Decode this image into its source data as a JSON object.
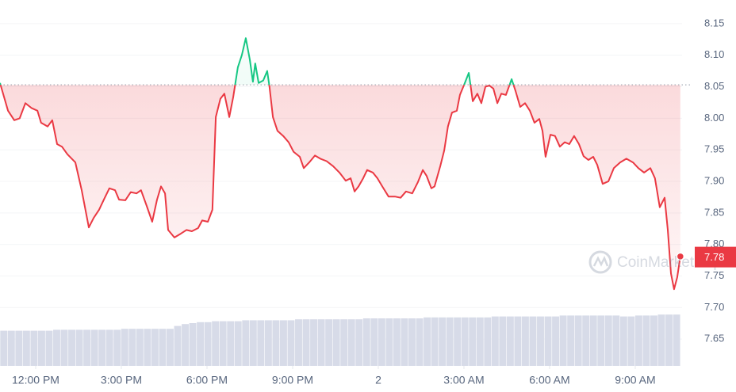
{
  "chart_data": {
    "type": "line",
    "watermark": "CoinMarketCap",
    "x": [
      -1.25,
      -0.97,
      -0.75,
      -0.56,
      -0.36,
      -0.14,
      0.06,
      0.19,
      0.42,
      0.58,
      0.75,
      0.92,
      1.11,
      1.39,
      1.61,
      1.86,
      2.03,
      2.22,
      2.42,
      2.58,
      2.78,
      2.92,
      3.14,
      3.33,
      3.53,
      3.69,
      3.89,
      4.08,
      4.25,
      4.39,
      4.53,
      4.64,
      4.86,
      5.08,
      5.28,
      5.47,
      5.69,
      5.83,
      6.03,
      6.19,
      6.31,
      6.47,
      6.61,
      6.78,
      6.92,
      7.08,
      7.22,
      7.36,
      7.5,
      7.61,
      7.69,
      7.81,
      7.97,
      8.11,
      8.19,
      8.31,
      8.47,
      8.67,
      8.86,
      9.03,
      9.25,
      9.39,
      9.58,
      9.78,
      9.97,
      10.19,
      10.42,
      10.64,
      10.86,
      11.03,
      11.17,
      11.31,
      11.47,
      11.61,
      11.81,
      11.97,
      12.14,
      12.36,
      12.58,
      12.78,
      12.97,
      13.19,
      13.39,
      13.56,
      13.69,
      13.86,
      13.97,
      14.17,
      14.31,
      14.44,
      14.58,
      14.75,
      14.86,
      15.03,
      15.17,
      15.31,
      15.47,
      15.61,
      15.75,
      15.89,
      16.03,
      16.17,
      16.31,
      16.47,
      16.67,
      16.81,
      16.97,
      17.14,
      17.31,
      17.47,
      17.64,
      17.75,
      17.86,
      18.03,
      18.19,
      18.36,
      18.53,
      18.69,
      18.86,
      19.03,
      19.19,
      19.36,
      19.53,
      19.67,
      19.86,
      20.06,
      20.25,
      20.47,
      20.69,
      20.92,
      21.11,
      21.31,
      21.53,
      21.69,
      21.86,
      22.03,
      22.14,
      22.25,
      22.36,
      22.47,
      22.58
    ],
    "series": [
      {
        "color": "#ea3943",
        "up_color": "#16c784",
        "values": [
          8.056,
          8.012,
          7.997,
          8.0,
          8.024,
          8.016,
          8.012,
          7.993,
          7.987,
          7.997,
          7.959,
          7.955,
          7.943,
          7.93,
          7.886,
          7.827,
          7.842,
          7.855,
          7.874,
          7.889,
          7.886,
          7.871,
          7.87,
          7.883,
          7.881,
          7.886,
          7.861,
          7.836,
          7.871,
          7.892,
          7.881,
          7.823,
          7.811,
          7.817,
          7.823,
          7.821,
          7.826,
          7.838,
          7.836,
          7.855,
          8.002,
          8.031,
          8.039,
          8.002,
          8.034,
          8.081,
          8.1,
          8.127,
          8.093,
          8.058,
          8.087,
          8.056,
          8.06,
          8.075,
          8.05,
          8.002,
          7.98,
          7.972,
          7.962,
          7.947,
          7.939,
          7.921,
          7.93,
          7.941,
          7.936,
          7.932,
          7.924,
          7.914,
          7.901,
          7.905,
          7.884,
          7.892,
          7.905,
          7.918,
          7.914,
          7.905,
          7.892,
          7.876,
          7.876,
          7.874,
          7.884,
          7.881,
          7.899,
          7.918,
          7.909,
          7.889,
          7.892,
          7.924,
          7.949,
          7.987,
          8.009,
          8.012,
          8.037,
          8.056,
          8.072,
          8.027,
          8.039,
          8.024,
          8.05,
          8.052,
          8.047,
          8.024,
          8.039,
          8.037,
          8.062,
          8.043,
          8.018,
          8.024,
          8.012,
          7.993,
          7.999,
          7.98,
          7.939,
          7.974,
          7.972,
          7.955,
          7.962,
          7.959,
          7.972,
          7.959,
          7.94,
          7.934,
          7.939,
          7.926,
          7.896,
          7.9,
          7.921,
          7.93,
          7.936,
          7.93,
          7.921,
          7.914,
          7.921,
          7.905,
          7.859,
          7.874,
          7.823,
          7.754,
          7.729,
          7.748,
          7.781
        ]
      }
    ],
    "reference": 8.053,
    "price_label": 7.78,
    "volume": {
      "color": "#d7dbe8",
      "ylim": [
        0,
        100
      ],
      "values": [
        37,
        37,
        37,
        37,
        37,
        37,
        37,
        38,
        38,
        38,
        38,
        38,
        38,
        38,
        38,
        38,
        39,
        39,
        39,
        39,
        39,
        39,
        39,
        42,
        44,
        45,
        46,
        46,
        47,
        47,
        47,
        47,
        48,
        48,
        48,
        48,
        48,
        48,
        48,
        49,
        49,
        49,
        49,
        49,
        49,
        49,
        49,
        49,
        50,
        50,
        50,
        50,
        50,
        50,
        50,
        50,
        51,
        51,
        51,
        51,
        51,
        51,
        51,
        51,
        51,
        52,
        52,
        52,
        52,
        52,
        52,
        52,
        52,
        52,
        53,
        53,
        53,
        53,
        53,
        53,
        53,
        53,
        52,
        52,
        53,
        53,
        53,
        54,
        54,
        54
      ]
    },
    "xlim": [
      -1.25,
      22.64
    ],
    "ylim": [
      7.6,
      8.18
    ],
    "xticks": [
      {
        "value": 0,
        "label": "12:00 PM"
      },
      {
        "value": 3,
        "label": "3:00 PM"
      },
      {
        "value": 6,
        "label": "6:00 PM"
      },
      {
        "value": 9,
        "label": "9:00 PM"
      },
      {
        "value": 12,
        "label": "2"
      },
      {
        "value": 15,
        "label": "3:00 AM"
      },
      {
        "value": 18,
        "label": "6:00 AM"
      },
      {
        "value": 21,
        "label": "9:00 AM"
      }
    ],
    "yticks": [
      7.65,
      {
        "value": 7.7,
        "label": "7.70"
      },
      7.75,
      {
        "value": 7.8,
        "label": "7.80"
      },
      7.85,
      {
        "value": 7.9,
        "label": "7.90"
      },
      7.95,
      {
        "value": 8.0,
        "label": "8.00"
      },
      8.05,
      {
        "value": 8.1,
        "label": "8.10"
      },
      8.15
    ],
    "grid": true
  }
}
